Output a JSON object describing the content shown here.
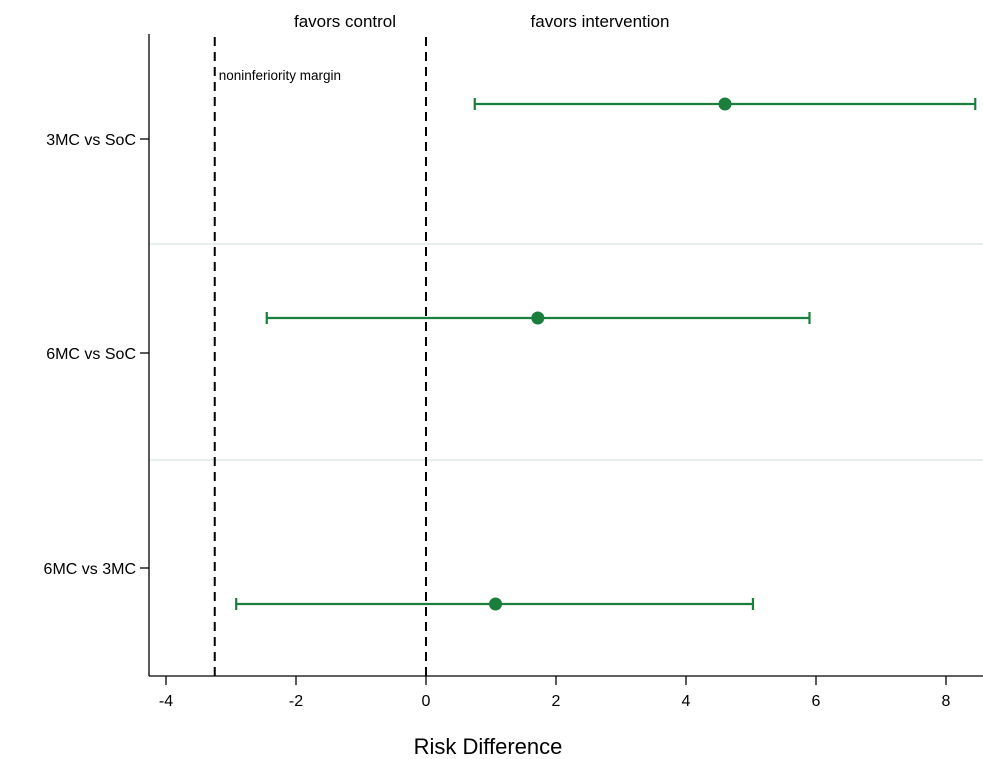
{
  "chart_data": {
    "type": "scatter",
    "xlabel": "Risk Difference",
    "xlim": [
      -4.25,
      8.55
    ],
    "xticks": [
      -4,
      -2,
      0,
      2,
      4,
      6,
      8
    ],
    "tick_labels": [
      "-4",
      "-2",
      "0",
      "2",
      "4",
      "6",
      "8"
    ],
    "categories": [
      "3MC vs SoC",
      "6MC vs SoC",
      "6MC vs 3MC"
    ],
    "series": [
      {
        "points": [
          {
            "category": "3MC vs SoC",
            "estimate": 4.6,
            "ci_low": 0.75,
            "ci_high": 8.45
          },
          {
            "category": "6MC vs SoC",
            "estimate": 1.72,
            "ci_low": -2.45,
            "ci_high": 5.9
          },
          {
            "category": "6MC vs 3MC",
            "estimate": 1.07,
            "ci_low": -2.92,
            "ci_high": 5.03
          }
        ]
      }
    ],
    "reference_lines": [
      {
        "x": -3.25,
        "label": "noninferiority margin",
        "style": "dashed"
      },
      {
        "x": 0,
        "label": "",
        "style": "dashed"
      }
    ],
    "annotations": [
      "favors control",
      "favors intervention"
    ],
    "colors": {
      "marker": "#1a7f3c",
      "separator": "#e6f0ee",
      "axis": "#000000"
    },
    "grid": false
  }
}
